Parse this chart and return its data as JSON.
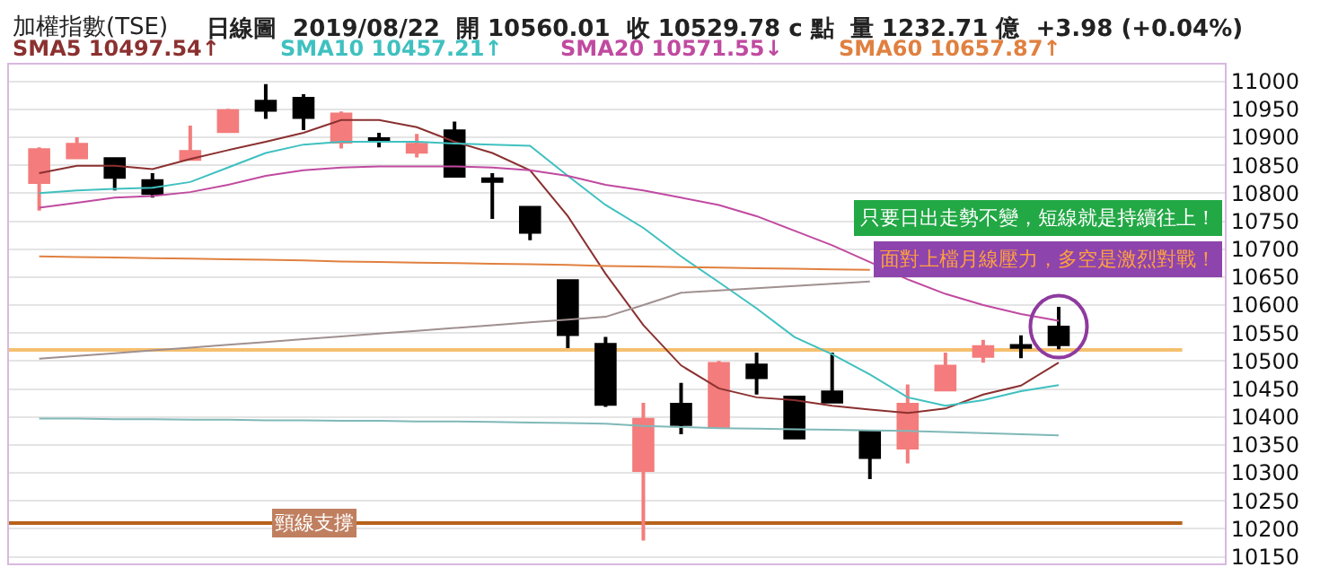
{
  "chart_data": {
    "type": "candlestick",
    "title": "加權指數(TSE)",
    "subtitle": "日線圖  2019/08/22  開 10560.01  收 10529.78 c 點  量 1232.71 億  +3.98 (+0.04%)",
    "categories": [
      null,
      null,
      null,
      null,
      null,
      null,
      null,
      null,
      null,
      null,
      null,
      null,
      null,
      null,
      null,
      null,
      null,
      null,
      null,
      null,
      null,
      null,
      null,
      null,
      null,
      null,
      null,
      null
    ],
    "ohlc": [
      [
        10820,
        10882,
        10769,
        10877
      ],
      [
        10864,
        10900,
        10864,
        10887
      ],
      [
        10861,
        10861,
        10805,
        10829
      ],
      [
        10822,
        10836,
        10792,
        10800
      ],
      [
        10861,
        10921,
        10861,
        10874
      ],
      [
        10911,
        10951,
        10911,
        10947
      ],
      [
        10964,
        10995,
        10933,
        10949
      ],
      [
        10969,
        10977,
        10913,
        10936
      ],
      [
        10892,
        10946,
        10880,
        10941
      ],
      [
        10897,
        10908,
        10882,
        10894
      ],
      [
        10874,
        10906,
        10864,
        10887
      ],
      [
        10911,
        10928,
        10829,
        10831
      ],
      [
        10825,
        10836,
        10754,
        10822
      ],
      [
        10774,
        10774,
        10716,
        10731
      ],
      [
        10643,
        10643,
        10523,
        10548
      ],
      [
        10529,
        10543,
        10418,
        10423
      ],
      [
        10305,
        10425,
        10179,
        10395
      ],
      [
        10422,
        10461,
        10369,
        10387
      ],
      [
        10382,
        10500,
        10382,
        10495
      ],
      [
        10492,
        10515,
        10440,
        10471
      ],
      [
        10435,
        10435,
        10363,
        10363
      ],
      [
        10444,
        10515,
        10427,
        10427
      ],
      [
        10374,
        10374,
        10289,
        10328
      ],
      [
        10345,
        10458,
        10317,
        10422
      ],
      [
        10449,
        10515,
        10449,
        10490
      ],
      [
        10509,
        10538,
        10497,
        10525
      ],
      [
        10527,
        10546,
        10505,
        10525
      ],
      [
        10560,
        10597,
        10521,
        10530
      ]
    ],
    "colors": [
      "#f47c7c",
      "#f47c7c",
      "#000000",
      "#000000",
      "#f47c7c",
      "#f47c7c",
      "#000000",
      "#000000",
      "#f47c7c",
      "#000000",
      "#f47c7c",
      "#000000",
      "#000000",
      "#000000",
      "#000000",
      "#000000",
      "#f47c7c",
      "#000000",
      "#f47c7c",
      "#000000",
      "#000000",
      "#000000",
      "#000000",
      "#f47c7c",
      "#f47c7c",
      "#f47c7c",
      "#000000",
      "#000000"
    ],
    "series": [
      {
        "type": "line",
        "name": "SMA5 10497.54↑",
        "color": "#8b3030",
        "values": [
          10836,
          10849,
          10849,
          10843,
          10861,
          10877,
          10892,
          10908,
          10931,
          10931,
          10918,
          10892,
          10872,
          10841,
          10759,
          10656,
          10564,
          10492,
          10451,
          10435,
          10430,
          10420,
          10413,
          10407,
          10415,
          10440,
          10456,
          10497
        ]
      },
      {
        "type": "line",
        "name": "SMA10 10457.21↑",
        "color": "#40c0c0",
        "values": [
          10800,
          10805,
          10808,
          10810,
          10820,
          10846,
          10872,
          10887,
          10892,
          10892,
          10892,
          10889,
          10887,
          10885,
          10831,
          10779,
          10738,
          10687,
          10641,
          10594,
          10543,
          10512,
          10476,
          10435,
          10420,
          10430,
          10446,
          10457
        ]
      },
      {
        "type": "line",
        "name": "SMA20 10571.55↓",
        "color": "#c04aa0",
        "values": [
          10774,
          10783,
          10792,
          10795,
          10802,
          10815,
          10831,
          10841,
          10846,
          10848,
          10848,
          10848,
          10846,
          10841,
          10831,
          10815,
          10805,
          10792,
          10779,
          10759,
          10733,
          10707,
          10677,
          10646,
          10620,
          10600,
          10584,
          10572
        ]
      },
      {
        "type": "line",
        "name": "SMA60 10657.87↑",
        "color": "#e08040",
        "values": [
          10687,
          10686,
          10685,
          10684,
          10683,
          10682,
          10681,
          10680,
          10678,
          10677,
          10676,
          10675,
          10674,
          10673,
          10672,
          10670,
          10669,
          10668,
          10667,
          10666,
          10665,
          10664,
          10663,
          null,
          null,
          null,
          null,
          null
        ]
      },
      {
        "type": "line",
        "color": "#a09090",
        "values": [
          10504,
          10509,
          10514,
          10519,
          10524,
          10529,
          10534,
          10539,
          10544,
          10549,
          10554,
          10559,
          10564,
          10569,
          10574,
          10579,
          10600,
          10622,
          10626,
          10630,
          10634,
          10638,
          10642,
          null,
          null,
          null,
          null,
          null
        ]
      },
      {
        "type": "line",
        "color": "#80b8b8",
        "values": [
          10397,
          10397,
          10396,
          10396,
          10395,
          10395,
          10394,
          10394,
          10393,
          10393,
          10392,
          10392,
          10391,
          10390,
          10389,
          10388,
          10384,
          10382,
          10380,
          10379,
          10378,
          10377,
          10376,
          10375,
          10373,
          10371,
          10369,
          10367
        ]
      }
    ],
    "ref_lines": [
      {
        "axis": "y",
        "value": 10520,
        "color": "#f5c070"
      },
      {
        "axis": "y",
        "value": 10210,
        "color": "#b8621b",
        "label": "頸線支撐"
      }
    ],
    "annotations": [
      "只要日出走勢不變，短線就是持續往上！",
      "面對上檔月線壓力，多空是激烈對戰！"
    ],
    "ylim": [
      10138,
      11030
    ],
    "yticks": [
      10150,
      10200,
      10250,
      10300,
      10350,
      10400,
      10450,
      10500,
      10550,
      10600,
      10650,
      10700,
      10750,
      10800,
      10850,
      10900,
      10950,
      11000
    ],
    "grid": "y",
    "tick_labels": "y"
  }
}
